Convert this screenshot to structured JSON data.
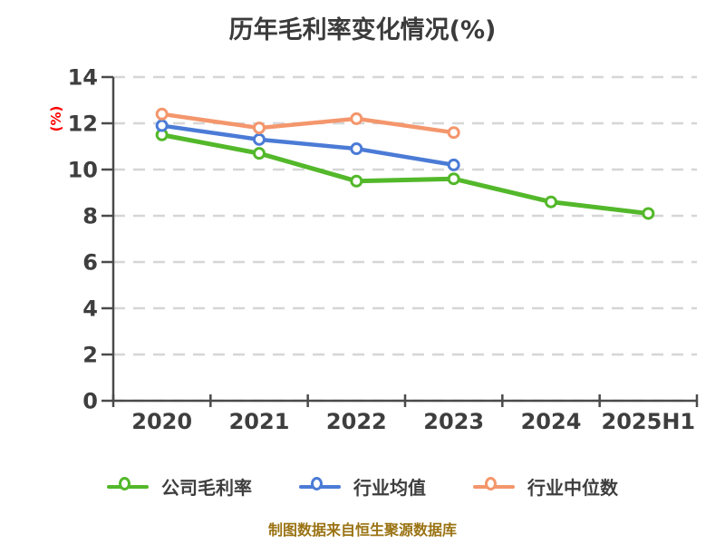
{
  "title": "历年毛利率变化情况(%)",
  "footer": "制图数据来自恒生聚源数据库",
  "colors": {
    "title": "#3b3b3b",
    "axis": "#4a4a4a",
    "tick_label": "#3e3e3e",
    "gridline": "#d6d6d6",
    "y_axis_title": "#ff0000",
    "footer": "#9a7313",
    "marker_fill": "#ffffff",
    "series_green": "#53b82a",
    "series_blue": "#4b7bd6",
    "series_orange": "#f4966c"
  },
  "chart_data": {
    "type": "line",
    "title": "历年毛利率变化情况(%)",
    "ylabel": "(%)",
    "xlabel": "",
    "categories": [
      "2020",
      "2021",
      "2022",
      "2023",
      "2024",
      "2025H1"
    ],
    "series": [
      {
        "id": "company-gross-margin",
        "name": "公司毛利率",
        "color": "#53b82a",
        "values": [
          11.5,
          10.7,
          9.5,
          9.6,
          8.6,
          8.1
        ]
      },
      {
        "id": "industry-mean",
        "name": "行业均值",
        "color": "#4b7bd6",
        "values": [
          11.9,
          11.3,
          10.9,
          10.2,
          null,
          null
        ]
      },
      {
        "id": "industry-median",
        "name": "行业中位数",
        "color": "#f4966c",
        "values": [
          12.4,
          11.8,
          12.2,
          11.6,
          null,
          null
        ]
      }
    ],
    "ylim": [
      0,
      14
    ],
    "ytick_step": 2,
    "grid": "horizontal-dashed",
    "legend_position": "bottom",
    "marker_style": "circle-white-fill"
  }
}
